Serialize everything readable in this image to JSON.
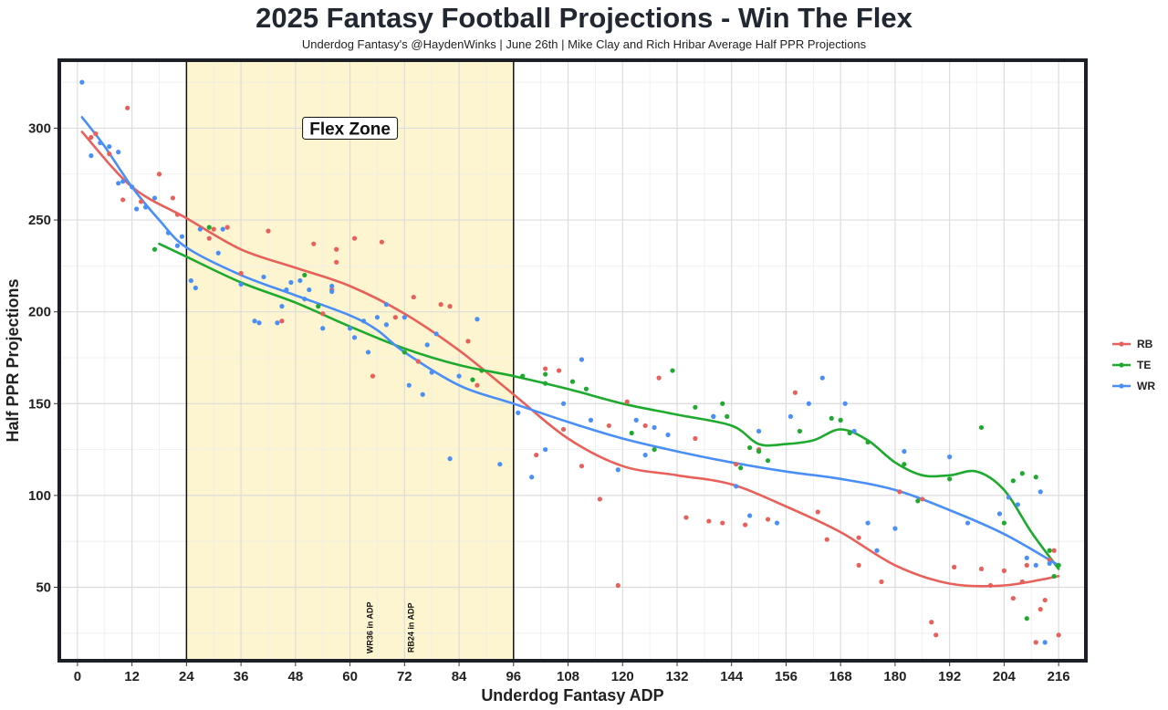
{
  "header": {
    "title": "2025 Fantasy Football Projections - Win The Flex",
    "subtitle": "Underdog Fantasy's @HaydenWinks | June 26th | Mike Clay and Rich Hribar Average Half PPR Projections"
  },
  "chart_data": {
    "type": "scatter",
    "title": "2025 Fantasy Football Projections - Win The Flex",
    "subtitle": "Underdog Fantasy's @HaydenWinks | June 26th | Mike Clay and Rich Hribar Average Half PPR Projections",
    "xlabel": "Underdog Fantasy ADP",
    "ylabel": "Half PPR Projections",
    "xlim": [
      -4,
      222
    ],
    "ylim": [
      10,
      337
    ],
    "xticks": [
      0,
      12,
      24,
      36,
      48,
      60,
      72,
      84,
      96,
      108,
      120,
      132,
      144,
      156,
      168,
      180,
      192,
      204,
      216
    ],
    "yticks": [
      50,
      100,
      150,
      200,
      250,
      300
    ],
    "grid": true,
    "legend": {
      "position": "right",
      "entries": [
        "RB",
        "TE",
        "WR"
      ]
    },
    "shaded_region": {
      "x_start": 24,
      "x_end": 96,
      "label": "Flex Zone",
      "label_x": 60,
      "label_y": 300,
      "color": "#fdf4cc"
    },
    "annotations": [
      {
        "text": "WR36 in ADP",
        "x": 65,
        "y": 28
      },
      {
        "text": "RB24 in ADP",
        "x": 74,
        "y": 28
      }
    ],
    "series": [
      {
        "name": "RB",
        "color": "#e8605a",
        "points": [
          [
            3,
            295
          ],
          [
            4,
            297
          ],
          [
            7,
            286
          ],
          [
            10,
            261
          ],
          [
            11,
            311
          ],
          [
            14,
            260
          ],
          [
            18,
            275
          ],
          [
            21,
            262
          ],
          [
            22,
            253
          ],
          [
            29,
            240
          ],
          [
            30,
            245
          ],
          [
            33,
            246
          ],
          [
            36,
            221
          ],
          [
            42,
            244
          ],
          [
            45,
            195
          ],
          [
            52,
            237
          ],
          [
            54,
            199
          ],
          [
            56,
            212
          ],
          [
            57,
            227
          ],
          [
            57,
            234
          ],
          [
            61,
            240
          ],
          [
            65,
            165
          ],
          [
            67,
            238
          ],
          [
            70,
            197
          ],
          [
            74,
            208
          ],
          [
            75,
            173
          ],
          [
            80,
            204
          ],
          [
            82,
            203
          ],
          [
            86,
            184
          ],
          [
            88,
            160
          ],
          [
            101,
            122
          ],
          [
            103,
            169
          ],
          [
            106,
            168
          ],
          [
            107,
            136
          ],
          [
            111,
            116
          ],
          [
            115,
            98
          ],
          [
            117,
            138
          ],
          [
            119,
            51
          ],
          [
            121,
            151
          ],
          [
            125,
            138
          ],
          [
            128,
            164
          ],
          [
            134,
            88
          ],
          [
            136,
            131
          ],
          [
            139,
            86
          ],
          [
            142,
            85
          ],
          [
            145,
            117
          ],
          [
            147,
            84
          ],
          [
            150,
            125
          ],
          [
            152,
            87
          ],
          [
            158,
            156
          ],
          [
            163,
            91
          ],
          [
            165,
            76
          ],
          [
            172,
            77
          ],
          [
            172,
            62
          ],
          [
            177,
            53
          ],
          [
            181,
            102
          ],
          [
            186,
            98
          ],
          [
            188,
            31
          ],
          [
            189,
            24
          ],
          [
            193,
            61
          ],
          [
            199,
            60
          ],
          [
            201,
            51
          ],
          [
            204,
            59
          ],
          [
            206,
            44
          ],
          [
            208,
            53
          ],
          [
            209,
            62
          ],
          [
            211,
            20
          ],
          [
            212,
            38
          ],
          [
            213,
            43
          ],
          [
            214,
            65
          ],
          [
            215,
            70
          ],
          [
            216,
            24
          ]
        ],
        "trend": [
          [
            1,
            298
          ],
          [
            12,
            268
          ],
          [
            24,
            251
          ],
          [
            36,
            234
          ],
          [
            48,
            224
          ],
          [
            60,
            214
          ],
          [
            72,
            199
          ],
          [
            84,
            179
          ],
          [
            96,
            155
          ],
          [
            108,
            131
          ],
          [
            120,
            116
          ],
          [
            132,
            111
          ],
          [
            144,
            106
          ],
          [
            156,
            94
          ],
          [
            168,
            80
          ],
          [
            180,
            62
          ],
          [
            192,
            52
          ],
          [
            204,
            51
          ],
          [
            216,
            56
          ]
        ]
      },
      {
        "name": "TE",
        "color": "#1eaa2e",
        "points": [
          [
            17,
            234
          ],
          [
            29,
            246
          ],
          [
            50,
            220
          ],
          [
            53,
            203
          ],
          [
            72,
            178
          ],
          [
            87,
            163
          ],
          [
            89,
            168
          ],
          [
            98,
            165
          ],
          [
            103,
            166
          ],
          [
            103,
            161
          ],
          [
            109,
            162
          ],
          [
            112,
            158
          ],
          [
            122,
            134
          ],
          [
            127,
            125
          ],
          [
            131,
            168
          ],
          [
            136,
            148
          ],
          [
            140,
            143
          ],
          [
            142,
            150
          ],
          [
            143,
            143
          ],
          [
            146,
            115
          ],
          [
            148,
            126
          ],
          [
            150,
            124
          ],
          [
            152,
            119
          ],
          [
            159,
            135
          ],
          [
            166,
            142
          ],
          [
            168,
            141
          ],
          [
            170,
            134
          ],
          [
            174,
            129
          ],
          [
            182,
            117
          ],
          [
            185,
            97
          ],
          [
            192,
            109
          ],
          [
            199,
            137
          ],
          [
            204,
            85
          ],
          [
            206,
            108
          ],
          [
            208,
            112
          ],
          [
            209,
            33
          ],
          [
            211,
            110
          ],
          [
            214,
            70
          ],
          [
            215,
            56
          ],
          [
            216,
            62
          ]
        ],
        "trend": [
          [
            18,
            237
          ],
          [
            24,
            230
          ],
          [
            36,
            216
          ],
          [
            48,
            205
          ],
          [
            60,
            192
          ],
          [
            72,
            180
          ],
          [
            84,
            171
          ],
          [
            96,
            165
          ],
          [
            108,
            158
          ],
          [
            120,
            150
          ],
          [
            132,
            144
          ],
          [
            144,
            138
          ],
          [
            150,
            128
          ],
          [
            156,
            128
          ],
          [
            162,
            130
          ],
          [
            168,
            136
          ],
          [
            174,
            130
          ],
          [
            180,
            118
          ],
          [
            186,
            111
          ],
          [
            192,
            111
          ],
          [
            198,
            113
          ],
          [
            204,
            103
          ],
          [
            210,
            80
          ],
          [
            216,
            60
          ]
        ]
      },
      {
        "name": "WR",
        "color": "#4a8ef7",
        "points": [
          [
            1,
            325
          ],
          [
            3,
            285
          ],
          [
            5,
            292
          ],
          [
            7,
            290
          ],
          [
            9,
            287
          ],
          [
            9,
            270
          ],
          [
            10,
            271
          ],
          [
            12,
            268
          ],
          [
            13,
            256
          ],
          [
            15,
            257
          ],
          [
            17,
            262
          ],
          [
            20,
            243
          ],
          [
            22,
            236
          ],
          [
            23,
            241
          ],
          [
            25,
            217
          ],
          [
            26,
            213
          ],
          [
            27,
            245
          ],
          [
            31,
            232
          ],
          [
            32,
            245
          ],
          [
            36,
            215
          ],
          [
            39,
            195
          ],
          [
            40,
            194
          ],
          [
            41,
            219
          ],
          [
            44,
            194
          ],
          [
            45,
            203
          ],
          [
            46,
            212
          ],
          [
            47,
            216
          ],
          [
            49,
            217
          ],
          [
            50,
            207
          ],
          [
            51,
            212
          ],
          [
            54,
            191
          ],
          [
            56,
            211
          ],
          [
            56,
            214
          ],
          [
            60,
            191
          ],
          [
            61,
            186
          ],
          [
            63,
            195
          ],
          [
            64,
            178
          ],
          [
            66,
            197
          ],
          [
            68,
            204
          ],
          [
            68,
            193
          ],
          [
            72,
            197
          ],
          [
            73,
            160
          ],
          [
            76,
            155
          ],
          [
            77,
            182
          ],
          [
            78,
            167
          ],
          [
            79,
            188
          ],
          [
            82,
            120
          ],
          [
            84,
            165
          ],
          [
            88,
            196
          ],
          [
            93,
            117
          ],
          [
            97,
            145
          ],
          [
            100,
            110
          ],
          [
            103,
            125
          ],
          [
            107,
            150
          ],
          [
            111,
            174
          ],
          [
            113,
            141
          ],
          [
            119,
            114
          ],
          [
            123,
            141
          ],
          [
            125,
            122
          ],
          [
            127,
            137
          ],
          [
            130,
            133
          ],
          [
            140,
            143
          ],
          [
            145,
            105
          ],
          [
            148,
            89
          ],
          [
            150,
            135
          ],
          [
            154,
            85
          ],
          [
            157,
            143
          ],
          [
            161,
            150
          ],
          [
            164,
            164
          ],
          [
            169,
            150
          ],
          [
            171,
            135
          ],
          [
            174,
            85
          ],
          [
            176,
            70
          ],
          [
            180,
            82
          ],
          [
            182,
            124
          ],
          [
            192,
            121
          ],
          [
            196,
            85
          ],
          [
            203,
            90
          ],
          [
            205,
            99
          ],
          [
            207,
            95
          ],
          [
            209,
            66
          ],
          [
            211,
            62
          ],
          [
            212,
            102
          ],
          [
            213,
            20
          ],
          [
            214,
            63
          ]
        ],
        "trend": [
          [
            1,
            306
          ],
          [
            6,
            290
          ],
          [
            12,
            268
          ],
          [
            18,
            250
          ],
          [
            24,
            235
          ],
          [
            36,
            220
          ],
          [
            48,
            209
          ],
          [
            60,
            198
          ],
          [
            66,
            190
          ],
          [
            72,
            178
          ],
          [
            84,
            160
          ],
          [
            96,
            150
          ],
          [
            108,
            140
          ],
          [
            120,
            131
          ],
          [
            132,
            124
          ],
          [
            144,
            118
          ],
          [
            156,
            113
          ],
          [
            168,
            109
          ],
          [
            180,
            103
          ],
          [
            192,
            92
          ],
          [
            204,
            79
          ],
          [
            216,
            62
          ]
        ]
      }
    ]
  }
}
